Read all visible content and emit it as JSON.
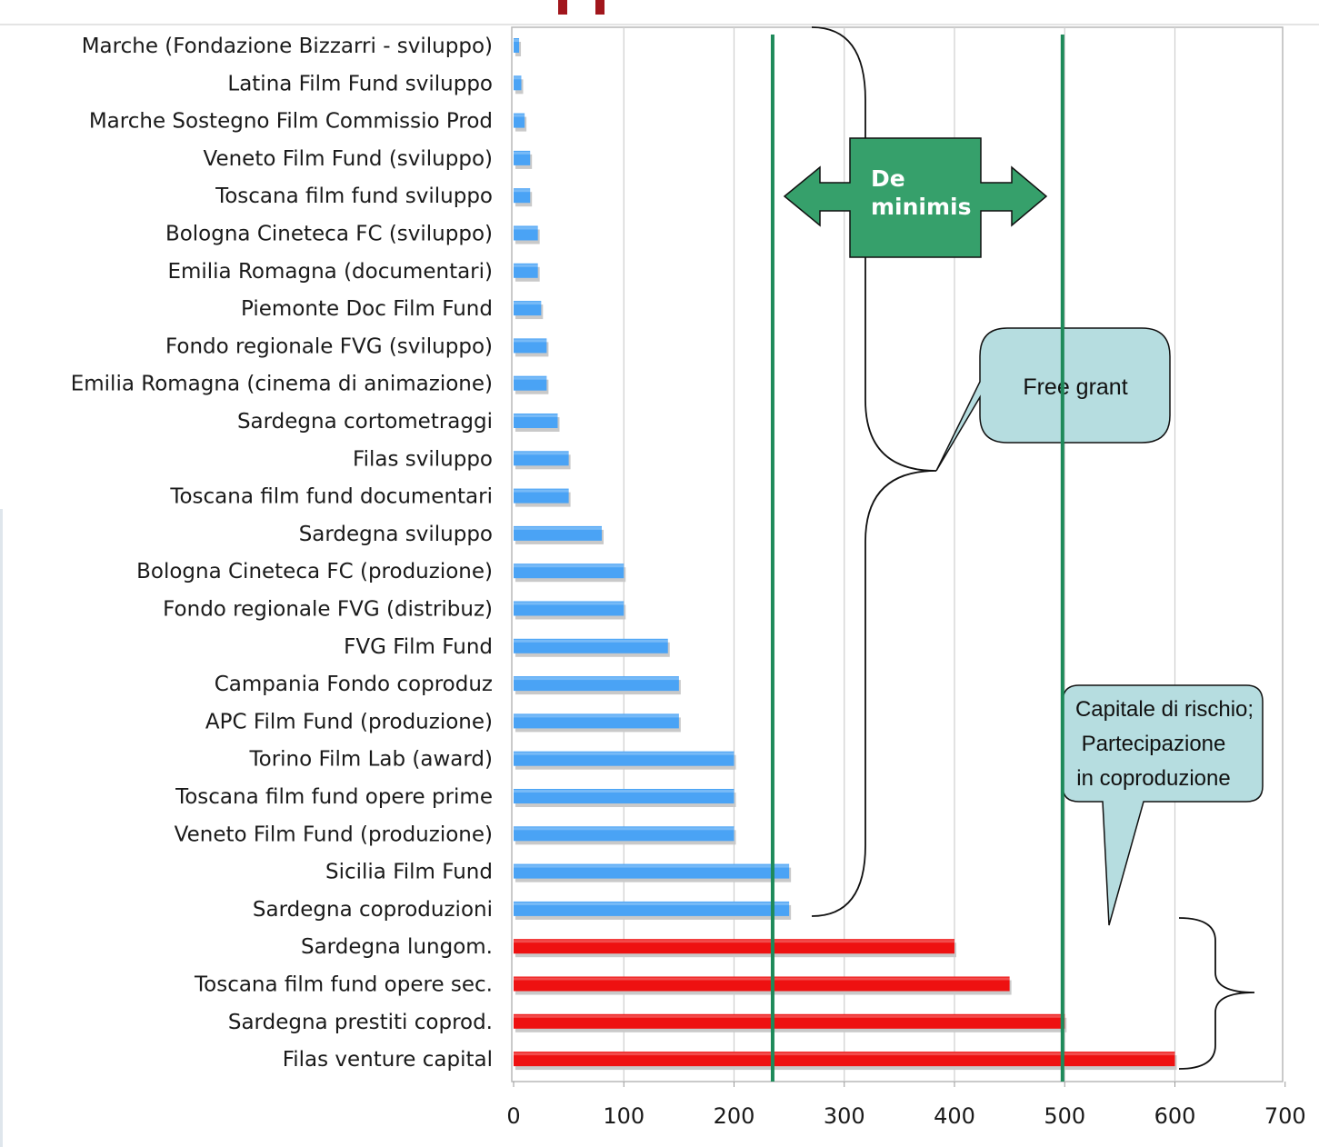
{
  "chart_data": {
    "type": "bar",
    "orientation": "horizontal",
    "categories": [
      "Marche (Fondazione Bizzarri - sviluppo)",
      "Latina Film Fund sviluppo",
      "Marche Sostegno Film Commissio Prod",
      "Veneto Film Fund (sviluppo)",
      "Toscana film fund sviluppo",
      "Bologna Cineteca FC (sviluppo)",
      "Emilia Romagna (documentari)",
      "Piemonte Doc Film Fund",
      "Fondo regionale FVG (sviluppo)",
      "Emilia Romagna (cinema di animazione)",
      "Sardegna cortometraggi",
      "Filas sviluppo",
      "Toscana film fund documentari",
      "Sardegna sviluppo",
      "Bologna Cineteca FC (produzione)",
      "Fondo regionale FVG (distribuz)",
      "FVG Film Fund",
      "Campania Fondo coproduz",
      "APC Film Fund (produzione)",
      "Torino Film Lab (award)",
      "Toscana film fund opere prime",
      "Veneto Film Fund (produzione)",
      "Sicilia Film Fund",
      "Sardegna coproduzioni",
      "Sardegna lungom.",
      "Toscana film fund opere sec.",
      "Sardegna prestiti coprod.",
      "Filas venture capital"
    ],
    "values": [
      5,
      7,
      10,
      15,
      15,
      22,
      22,
      25,
      30,
      30,
      40,
      50,
      50,
      80,
      100,
      100,
      140,
      150,
      150,
      200,
      200,
      200,
      250,
      250,
      400,
      450,
      500,
      600
    ],
    "bar_colors": {
      "free_grant": "#4aa3f5",
      "risk_capital": "#ee1111"
    },
    "risk_capital_count": 4,
    "xlim": [
      0,
      700
    ],
    "xticks": [
      "0",
      "100",
      "200",
      "300",
      "400",
      "500",
      "600",
      "700"
    ],
    "grid": "vertical",
    "reference_lines": [
      235,
      498
    ],
    "reference_line_color": "#1e8a5a"
  },
  "annotations": {
    "de_minimis": {
      "line1": "De",
      "line2": "minimis",
      "color": "#36a06b"
    },
    "free_grant": {
      "text": "Free grant",
      "color": "#b6dde0"
    },
    "risk_capital": {
      "line1": "Capitale di rischio;",
      "line2": "Partecipazione",
      "line3": "in coproduzione",
      "color": "#b6dde0"
    }
  }
}
